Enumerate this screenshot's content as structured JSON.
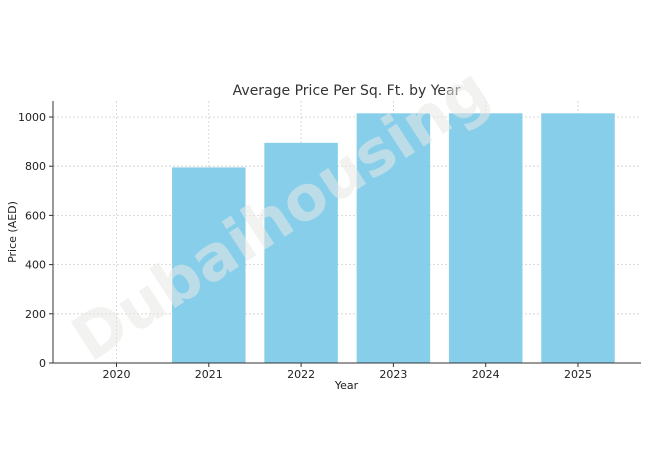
{
  "chart_data": {
    "type": "bar",
    "title": "Average Price Per Sq. Ft. by Year",
    "xlabel": "Year",
    "ylabel": "Price (AED)",
    "categories": [
      "2020",
      "2021",
      "2022",
      "2023",
      "2024",
      "2025"
    ],
    "values": [
      0,
      795,
      895,
      1015,
      1015,
      1015
    ],
    "ylim": [
      0,
      1065
    ],
    "yticks": [
      0,
      200,
      400,
      600,
      800,
      1000
    ],
    "grid": true,
    "bar_color": "#87ceeb"
  },
  "watermark": "Dubaihousing"
}
